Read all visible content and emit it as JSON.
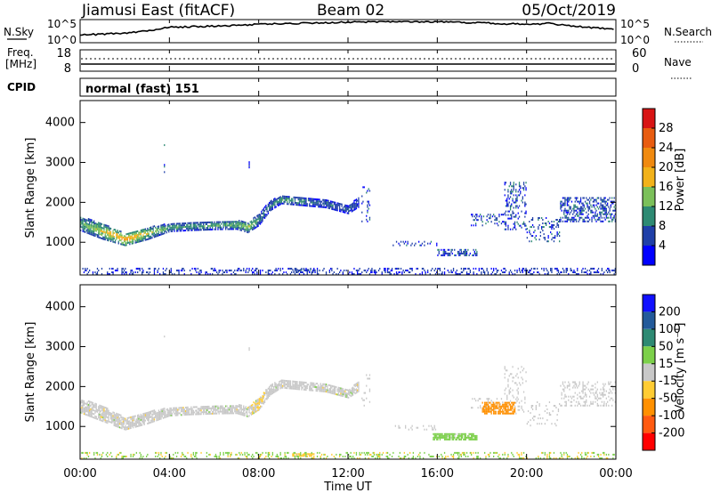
{
  "header": {
    "station": "Jiamusi East (fitACF)",
    "beam": "Beam 02",
    "date": "05/Oct/2019"
  },
  "noise_panel": {
    "left_label": "N.Sky",
    "right_label": "N.Search",
    "ticks_left": [
      "10^5",
      "10^0"
    ],
    "ticks_right": [
      "10^5",
      "10^0"
    ]
  },
  "freq_panel": {
    "left_label_1": "Freq.",
    "left_label_2": "[MHz]",
    "left_ticks": [
      "18",
      "8"
    ],
    "right_label": "Nave",
    "right_ticks": [
      "60",
      "0"
    ]
  },
  "cpid": {
    "label": "CPID",
    "value": "normal (fast) 151"
  },
  "x_axis": {
    "label": "Time UT",
    "tick_labels": [
      "00:00",
      "04:00",
      "08:00",
      "12:00",
      "16:00",
      "20:00",
      "00:00"
    ]
  },
  "power_panel": {
    "ylabel": "Slant Range [km]",
    "y_ticks": [
      "1000",
      "2000",
      "3000",
      "4000"
    ],
    "colorbar_label": "Power [dB]",
    "colorbar_ticks": [
      "4",
      "8",
      "12",
      "16",
      "20",
      "24",
      "28"
    ]
  },
  "velocity_panel": {
    "ylabel": "Slant Range [km]",
    "y_ticks": [
      "1000",
      "2000",
      "3000",
      "4000"
    ],
    "colorbar_label": "Velocity [m s⁻¹]",
    "colorbar_ticks": [
      "200",
      "100",
      "50",
      "15",
      "-15",
      "-50",
      "-100",
      "-200"
    ]
  },
  "chart_data": {
    "type": "heatmap",
    "x_unit": "hours UT",
    "y_unit": "km",
    "xlim": [
      0,
      24
    ],
    "ylim": [
      180,
      4550
    ],
    "grid": false,
    "colors": {
      "power_scale": [
        "#0000ff",
        "#1f3fa8",
        "#2e8a73",
        "#7bc05a",
        "#f2b21a",
        "#f08a10",
        "#e85c10",
        "#d81414",
        "#ff0000"
      ],
      "velocity_scale": [
        "#1010ff",
        "#235a9a",
        "#2e8a73",
        "#7cd04a",
        "#c8c8c8",
        "#ffcc33",
        "#ff9000",
        "#ff5a10",
        "#ff0000"
      ]
    },
    "power_echo_band": {
      "x": [
        0.0,
        1.0,
        2.0,
        3.0,
        4.0,
        5.0,
        6.0,
        7.0,
        7.5,
        8.0,
        8.5,
        9.0,
        10.0,
        11.0,
        12.0,
        12.5
      ],
      "center_km": [
        1450,
        1250,
        1050,
        1200,
        1350,
        1380,
        1400,
        1420,
        1350,
        1550,
        1900,
        2050,
        2000,
        1950,
        1800,
        2000
      ],
      "width_km": [
        350,
        380,
        300,
        300,
        200,
        200,
        200,
        220,
        250,
        300,
        250,
        200,
        200,
        200,
        200,
        250
      ],
      "power_db": [
        12,
        16,
        22,
        16,
        12,
        11,
        12,
        14,
        16,
        10,
        8,
        12,
        10,
        8,
        8,
        6
      ]
    },
    "velocity_echo_band": {
      "x": [
        0.0,
        1.0,
        2.0,
        3.0,
        4.0,
        5.0,
        6.0,
        7.0,
        7.5,
        8.0,
        8.5,
        9.0,
        10.0,
        11.0,
        12.0,
        12.5
      ],
      "center_km": [
        1500,
        1300,
        1050,
        1200,
        1350,
        1380,
        1400,
        1420,
        1350,
        1550,
        1900,
        2050,
        2000,
        1950,
        1800,
        2000
      ],
      "width_km": [
        350,
        380,
        300,
        300,
        200,
        200,
        200,
        220,
        250,
        300,
        250,
        200,
        200,
        200,
        200,
        250
      ],
      "velocity_ms": [
        0,
        0,
        0,
        0,
        0,
        0,
        0,
        0,
        0,
        -20,
        0,
        0,
        0,
        0,
        10,
        0
      ]
    },
    "scatter_patches": [
      {
        "x0": 12.6,
        "x1": 13.0,
        "r0": 1500,
        "r1": 2400,
        "density": 0.15
      },
      {
        "x0": 14.0,
        "x1": 16.0,
        "r0": 900,
        "r1": 1000,
        "density": 0.25
      },
      {
        "x0": 16.0,
        "x1": 17.8,
        "r0": 650,
        "r1": 800,
        "density": 0.5
      },
      {
        "x0": 17.5,
        "x1": 19.0,
        "r0": 1400,
        "r1": 1700,
        "density": 0.25
      },
      {
        "x0": 19.0,
        "x1": 20.0,
        "r0": 1300,
        "r1": 2500,
        "density": 0.3
      },
      {
        "x0": 20.0,
        "x1": 21.5,
        "r0": 1000,
        "r1": 1600,
        "density": 0.2
      },
      {
        "x0": 21.5,
        "x1": 24.0,
        "r0": 1500,
        "r1": 2100,
        "density": 0.45
      },
      {
        "x0": 9.5,
        "x1": 10.5,
        "r0": 240,
        "r1": 320,
        "density": 0.4
      },
      {
        "x0": 3.75,
        "x1": 3.8,
        "r0": 2600,
        "r1": 3500,
        "density": 0.2
      },
      {
        "x0": 7.55,
        "x1": 7.6,
        "r0": 2850,
        "r1": 3000,
        "density": 1.0
      }
    ],
    "ground_clutter": {
      "r0": 180,
      "r1": 350,
      "density": 0.5
    },
    "velocity_patches": [
      {
        "x0": 15.8,
        "x1": 17.8,
        "r0": 650,
        "r1": 800,
        "velocity_ms": 30
      },
      {
        "x0": 18.0,
        "x1": 19.5,
        "r0": 1300,
        "r1": 1600,
        "velocity_ms": -60
      },
      {
        "x0": 9.5,
        "x1": 10.5,
        "r0": 240,
        "r1": 320,
        "velocity_ms": -40
      }
    ],
    "noise_sky_log10": {
      "x": [
        0,
        2,
        3.5,
        4,
        6,
        7.5,
        8,
        10,
        12,
        14,
        16,
        18,
        20,
        21,
        22,
        24
      ],
      "y": [
        1.5,
        2.0,
        3.0,
        3.5,
        3.8,
        4.0,
        4.3,
        4.5,
        4.8,
        5.0,
        4.9,
        4.6,
        4.2,
        4.5,
        3.8,
        3.0
      ]
    },
    "freq_mhz": {
      "x": [
        0,
        24
      ],
      "y": [
        11,
        11
      ]
    },
    "nave": {
      "x": [
        0,
        24
      ],
      "y": [
        30,
        30
      ]
    }
  }
}
